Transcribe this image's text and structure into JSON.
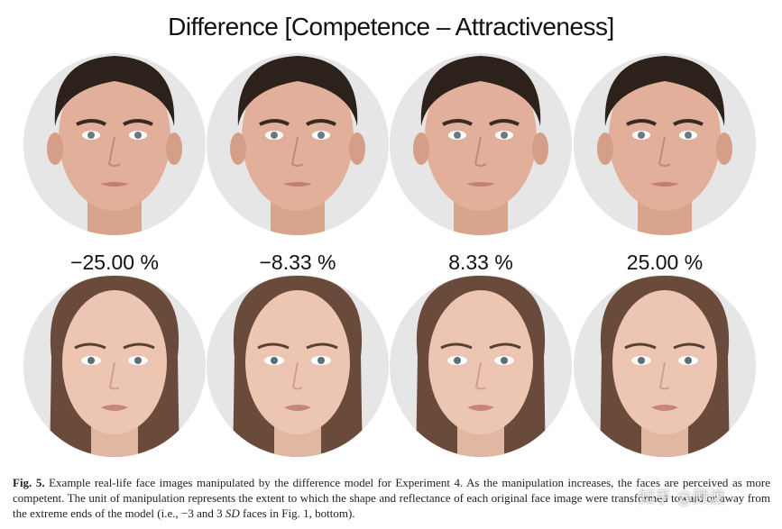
{
  "figure": {
    "title": "Difference [Competence – Attractiveness]",
    "labels": [
      "−25.00 %",
      "−8.33 %",
      "8.33 %",
      "25.00 %"
    ],
    "caption": {
      "label": "Fig. 5.",
      "text_1": "Example real-life face images manipulated by the difference model for Experiment 4. As the manipulation increases, the faces are perceived as more competent. The unit of manipulation represents the extent to which the shape and reflectance of each original face image were transformed toward or away from the extreme ends of the model (i.e., −3 and 3",
      "italic": "SD",
      "text_2": "faces in Fig. 1, bottom)."
    },
    "watermark": "知乎 @顾渡"
  }
}
